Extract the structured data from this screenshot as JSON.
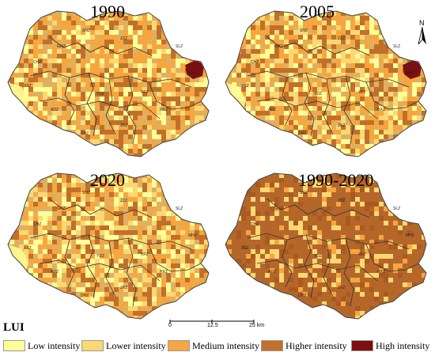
{
  "panels": [
    {
      "title": "1990",
      "style": "mixed",
      "hotspot": true
    },
    {
      "title": "2005",
      "style": "mixed-light",
      "hotspot": true
    },
    {
      "title": "2020",
      "style": "mixed-light2",
      "hotspot": false
    },
    {
      "title": "1990-2020",
      "style": "change",
      "hotspot": false
    }
  ],
  "north_label": "N",
  "scale": {
    "ticks": [
      "0",
      "12.5",
      "25 km"
    ]
  },
  "legend": {
    "title": "LUI",
    "items": [
      {
        "label": "Low intensity",
        "color": "#ffff99"
      },
      {
        "label": "Lower intensity",
        "color": "#fcd873"
      },
      {
        "label": "Medium intensity",
        "color": "#f6a640"
      },
      {
        "label": "Higher intensity",
        "color": "#c0702a"
      },
      {
        "label": "High intensity",
        "color": "#7a1010"
      }
    ]
  },
  "region_labels": [
    "XSZ",
    "GHZ",
    "SNZ",
    "ZZZ",
    "MHZ",
    "ADZ",
    "YDZ",
    "XFZ",
    "HXZ",
    "DHZ",
    "ZKZ",
    "CHZ",
    "SLZ"
  ]
}
